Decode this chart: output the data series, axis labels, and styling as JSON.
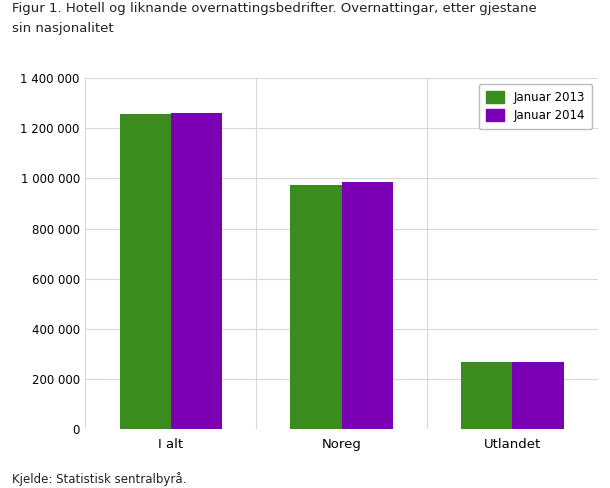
{
  "title_line1": "Figur 1. Hotell og liknande overnattingsbedrifter. Overnattingar, etter gjestane",
  "title_line2": "sin nasjonalitet",
  "categories": [
    "I alt",
    "Noreg",
    "Utlandet"
  ],
  "series": [
    {
      "label": "Januar 2013",
      "color": "#3a8c1e",
      "values": [
        1255000,
        975000,
        270000
      ]
    },
    {
      "label": "Januar 2014",
      "color": "#7b00b4",
      "values": [
        1262000,
        985000,
        270000
      ]
    }
  ],
  "ylim": [
    0,
    1400000
  ],
  "yticks": [
    0,
    200000,
    400000,
    600000,
    800000,
    1000000,
    1200000,
    1400000
  ],
  "ytick_labels": [
    "0",
    "200 000",
    "400 000",
    "600 000",
    "800 000",
    "1 000 000",
    "1 200 000",
    "1 400 000"
  ],
  "source": "Kjelde: Statistisk sentralbyrå.",
  "background_color": "#ffffff",
  "grid_color": "#d8d8d8",
  "bar_width": 0.3,
  "legend_position": "upper right"
}
